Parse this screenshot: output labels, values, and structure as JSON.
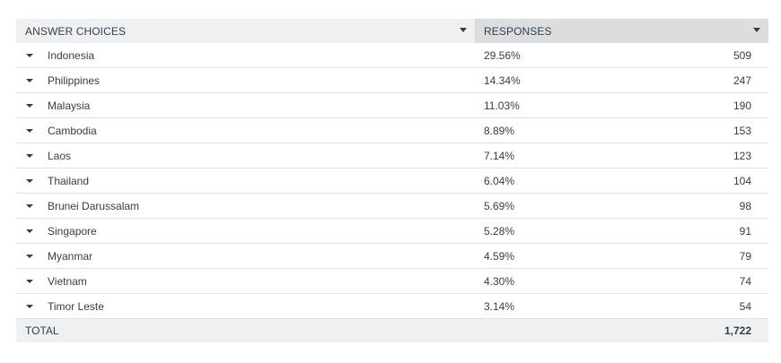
{
  "header": {
    "answer_choices": "ANSWER CHOICES",
    "responses": "RESPONSES"
  },
  "rows": [
    {
      "choice": "Indonesia",
      "percent": "29.56%",
      "count": "509"
    },
    {
      "choice": "Philippines",
      "percent": "14.34%",
      "count": "247"
    },
    {
      "choice": "Malaysia",
      "percent": "11.03%",
      "count": "190"
    },
    {
      "choice": "Cambodia",
      "percent": "8.89%",
      "count": "153"
    },
    {
      "choice": "Laos",
      "percent": "7.14%",
      "count": "123"
    },
    {
      "choice": "Thailand",
      "percent": "6.04%",
      "count": "104"
    },
    {
      "choice": "Brunei Darussalam",
      "percent": "5.69%",
      "count": "98"
    },
    {
      "choice": "Singapore",
      "percent": "5.28%",
      "count": "91"
    },
    {
      "choice": "Myanmar",
      "percent": "4.59%",
      "count": "79"
    },
    {
      "choice": "Vietnam",
      "percent": "4.30%",
      "count": "74"
    },
    {
      "choice": "Timor Leste",
      "percent": "3.14%",
      "count": "54"
    }
  ],
  "total": {
    "label": "TOTAL",
    "count": "1,722"
  },
  "icons": {
    "header_sort": "caret-down-icon",
    "row_expand": "caret-down-icon"
  }
}
